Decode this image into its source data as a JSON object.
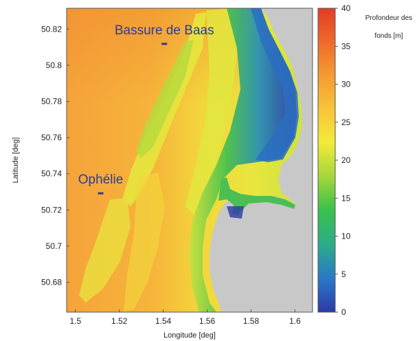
{
  "map": {
    "x_axis": {
      "label": "Longitude [deg]",
      "range": [
        1.496,
        1.608
      ],
      "ticks": [
        "1.5",
        "1.52",
        "1.54",
        "1.56",
        "1.58",
        "1.6"
      ],
      "tick_values": [
        1.5,
        1.52,
        1.54,
        1.56,
        1.58,
        1.6
      ]
    },
    "y_axis": {
      "label": "Latitude [deg]",
      "range": [
        50.6635,
        50.8315
      ],
      "ticks": [
        "50.68",
        "50.7",
        "50.72",
        "50.74",
        "50.76",
        "50.78",
        "50.8",
        "50.82"
      ],
      "tick_values": [
        50.68,
        50.7,
        50.72,
        50.74,
        50.76,
        50.78,
        50.8,
        50.82
      ]
    },
    "sites": [
      {
        "name": "Bassure de Baas",
        "lon": 1.5405,
        "lat": 50.8118
      },
      {
        "name": "Ophélie",
        "lon": 1.5115,
        "lat": 50.7292
      }
    ],
    "colorbar": {
      "title_line1": "Profondeur des",
      "title_line2": "fonds [m]",
      "range": [
        0,
        40
      ],
      "ticks": [
        "0",
        "5",
        "10",
        "15",
        "20",
        "25",
        "30",
        "35",
        "40"
      ],
      "tick_values": [
        0,
        5,
        10,
        15,
        20,
        25,
        30,
        35,
        40
      ],
      "colors": [
        "#2d3aa8",
        "#2a78c8",
        "#2bab8c",
        "#3cc24a",
        "#a6d83a",
        "#f3ea3a",
        "#f8c338",
        "#f59a33",
        "#ef6a2a",
        "#e33c26"
      ]
    },
    "colors": {
      "land": "#c8c8c8",
      "deep": "#f6a23c",
      "sandbank": "#f2e03e",
      "label": "#2b3aa0"
    }
  }
}
